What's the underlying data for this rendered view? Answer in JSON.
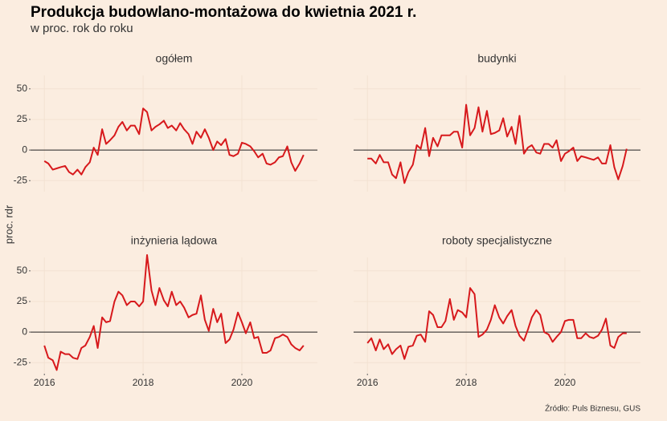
{
  "title": "Produkcja budowlano-montażowa do kwietnia 2021 r.",
  "subtitle": "w proc. rok do roku",
  "ylabel": "proc. rdr",
  "source": "Źródło: Puls Biznesu, GUS",
  "x": [
    2016,
    2016.08,
    2016.17,
    2016.25,
    2016.33,
    2016.42,
    2016.5,
    2016.58,
    2016.67,
    2016.75,
    2016.83,
    2016.92,
    2017,
    2017.08,
    2017.17,
    2017.25,
    2017.33,
    2017.42,
    2017.5,
    2017.58,
    2017.67,
    2017.75,
    2017.83,
    2017.92,
    2018,
    2018.08,
    2018.17,
    2018.25,
    2018.33,
    2018.42,
    2018.5,
    2018.58,
    2018.67,
    2018.75,
    2018.83,
    2018.92,
    2019,
    2019.08,
    2019.17,
    2019.25,
    2019.33,
    2019.42,
    2019.5,
    2019.58,
    2019.67,
    2019.75,
    2019.83,
    2019.92,
    2020,
    2020.08,
    2020.17,
    2020.25,
    2020.33,
    2020.42,
    2020.5,
    2020.58,
    2020.67,
    2020.75,
    2020.83,
    2020.92,
    2021,
    2021.08,
    2021.17,
    2021.25
  ],
  "xlim": [
    2015.72,
    2021.53
  ],
  "xticks": [
    2016,
    2018,
    2020
  ],
  "ylim": [
    -34,
    61
  ],
  "yticks": [
    -25,
    0,
    25,
    50
  ],
  "reference_line": 0,
  "color": "#d7191c",
  "grid": true,
  "chart_data": [
    {
      "type": "line",
      "title": "ogółem",
      "values": [
        -9,
        -11,
        -16,
        -15,
        -14,
        -13,
        -18,
        -20,
        -16,
        -20,
        -14,
        -10,
        2,
        -4,
        17,
        5,
        8,
        12,
        19,
        23,
        16,
        20,
        20,
        13,
        34,
        31,
        16,
        19,
        21,
        24,
        18,
        20,
        16,
        22,
        17,
        13,
        5,
        15,
        10,
        17,
        10,
        0,
        7,
        4,
        9,
        -4,
        -5,
        -3,
        6,
        5,
        3,
        -1,
        -6,
        -3,
        -11,
        -12,
        -10,
        -6,
        -5,
        3,
        -10,
        -17,
        -11,
        -4
      ]
    },
    {
      "type": "line",
      "title": "budynki",
      "values": [
        -7,
        -7,
        -11,
        -4,
        -10,
        -10,
        -20,
        -23,
        -10,
        -27,
        -18,
        -12,
        4,
        1,
        18,
        -5,
        10,
        3,
        12,
        12,
        12,
        15,
        15,
        2,
        37,
        12,
        18,
        35,
        15,
        32,
        13,
        14,
        16,
        26,
        11,
        19,
        5,
        28,
        -3,
        2,
        4,
        -2,
        -3,
        5,
        5,
        2,
        8,
        -9,
        -3,
        -1,
        2,
        -9,
        -5,
        -6,
        -7,
        -8,
        -6,
        -11,
        -11,
        4,
        -14,
        -24,
        -13,
        1
      ]
    },
    {
      "type": "line",
      "title": "inżynieria lądowa",
      "values": [
        -11,
        -21,
        -23,
        -31,
        -16,
        -18,
        -18,
        -21,
        -22,
        -13,
        -11,
        -4,
        5,
        -13,
        12,
        8,
        9,
        25,
        33,
        30,
        22,
        25,
        25,
        21,
        25,
        63,
        34,
        22,
        36,
        26,
        21,
        33,
        22,
        25,
        20,
        12,
        14,
        15,
        30,
        10,
        1,
        19,
        8,
        15,
        -9,
        -6,
        2,
        16,
        8,
        -1,
        8,
        -5,
        -4,
        -17,
        -17,
        -15,
        -5,
        -4,
        -2,
        -4,
        -10,
        -13,
        -15,
        -11
      ]
    },
    {
      "type": "line",
      "title": "roboty specjalistyczne",
      "values": [
        -9,
        -5,
        -15,
        -6,
        -14,
        -10,
        -18,
        -14,
        -11,
        -22,
        -12,
        -11,
        -3,
        -2,
        -8,
        17,
        14,
        4,
        4,
        9,
        27,
        10,
        18,
        16,
        12,
        36,
        31,
        -4,
        -2,
        2,
        10,
        22,
        12,
        7,
        13,
        18,
        5,
        -3,
        -7,
        2,
        12,
        18,
        14,
        0,
        -2,
        -8,
        -4,
        0,
        9,
        10,
        10,
        -5,
        -5,
        -1,
        -4,
        -5,
        -3,
        2,
        11,
        -11,
        -13,
        -4,
        -1,
        -1
      ]
    }
  ]
}
